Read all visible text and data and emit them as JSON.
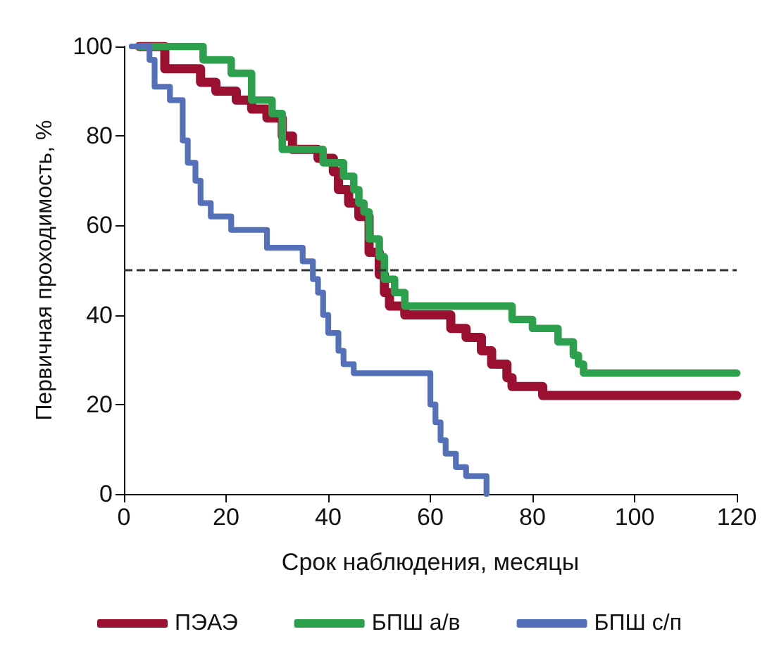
{
  "chart_data": {
    "type": "step",
    "xlabel": "Срок наблюдения, месяцы",
    "ylabel": "Первичная проходимость, %",
    "xlim": [
      0,
      120
    ],
    "xticks": [
      0,
      20,
      40,
      60,
      80,
      100,
      120
    ],
    "ylim": [
      0,
      100
    ],
    "yticks": [
      0,
      20,
      40,
      60,
      80,
      100
    ],
    "legend": "bottom",
    "marker": "none",
    "line_style": "solid",
    "ref_lines": [
      {
        "axis": "y",
        "value": 50,
        "line_style": "dashed",
        "color": "#333333"
      }
    ],
    "series": [
      {
        "name": "ПЭАЭ",
        "color": "#9b1030",
        "x": [
          3,
          8,
          15,
          18,
          22,
          25,
          28,
          31,
          33,
          38,
          41,
          42,
          44,
          46,
          48,
          50,
          51,
          52,
          55,
          64,
          67,
          70,
          72,
          75,
          76,
          82,
          120
        ],
        "values": [
          100,
          95,
          92,
          90,
          88,
          86,
          84,
          80,
          77,
          75,
          72,
          68,
          65,
          62,
          54,
          49,
          45,
          42,
          40,
          37,
          35,
          32,
          29,
          26,
          24,
          22,
          22
        ]
      },
      {
        "name": "БПШ а/в",
        "color": "#2ca04c",
        "x": [
          3,
          15.5,
          21,
          25,
          29,
          31,
          39,
          43,
          45,
          46,
          47,
          48,
          50,
          51,
          53,
          55,
          76,
          80,
          85,
          88,
          89,
          90,
          120
        ],
        "values": [
          100,
          97,
          94,
          88,
          85,
          77,
          74,
          71,
          68,
          65,
          63,
          57,
          53,
          48,
          45,
          42,
          39,
          37,
          34,
          31,
          29,
          27,
          27
        ]
      },
      {
        "name": "БПШ с/п",
        "color": "#5470b8",
        "x": [
          1.5,
          5,
          6,
          9,
          11.5,
          12.5,
          14,
          15,
          17,
          21,
          28,
          35,
          37,
          38,
          39,
          40,
          42,
          43,
          45,
          60,
          61,
          62,
          63,
          65,
          67,
          71
        ],
        "values": [
          100,
          97,
          91,
          88,
          79,
          74,
          70,
          65,
          62,
          59,
          55,
          52,
          48,
          45,
          40,
          36,
          32,
          29,
          27,
          20,
          16,
          12,
          9,
          6,
          4,
          0
        ]
      }
    ]
  }
}
